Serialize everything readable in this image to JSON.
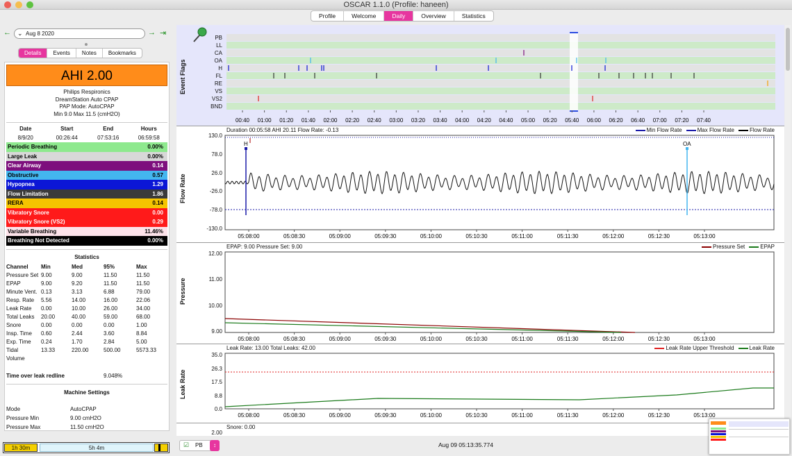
{
  "window": {
    "title": "OSCAR 1.1.0 (Profile: haneen)"
  },
  "top_tabs": [
    "Profile",
    "Welcome",
    "Daily",
    "Overview",
    "Statistics"
  ],
  "date_nav": {
    "date": "Aug 8 2020"
  },
  "sub_tabs": [
    "Details",
    "Events",
    "Notes",
    "Bookmarks"
  ],
  "ahi": "AHI 2.00",
  "machine": {
    "brand": "Philips Respironics",
    "model": "DreamStation Auto CPAP",
    "mode": "PAP Mode: AutoCPAP",
    "pressure": "Min 9.0 Max 11.5 (cmH2O)"
  },
  "session": {
    "headers": [
      "Date",
      "Start",
      "End",
      "Hours"
    ],
    "values": [
      "8/9/20",
      "00:26:44",
      "07:53:16",
      "06:59:58"
    ]
  },
  "events": [
    {
      "name": "Periodic Breathing",
      "value": "0.00%",
      "bg": "#8ee98e",
      "fg": "#000"
    },
    {
      "name": "Large Leak",
      "value": "0.00%",
      "bg": "#d8d8d8",
      "fg": "#000"
    },
    {
      "name": "Clear Airway",
      "value": "0.14",
      "bg": "#7d0f7d",
      "fg": "#fff"
    },
    {
      "name": "Obstructive",
      "value": "0.57",
      "bg": "#43b6ef",
      "fg": "#000"
    },
    {
      "name": "Hypopnea",
      "value": "1.29",
      "bg": "#0b16d6",
      "fg": "#fff"
    },
    {
      "name": "Flow Limitation",
      "value": "1.86",
      "bg": "#3a3a3a",
      "fg": "#fff"
    },
    {
      "name": "RERA",
      "value": "0.14",
      "bg": "#f5c400",
      "fg": "#000"
    },
    {
      "name": "Vibratory Snore",
      "value": "0.00",
      "bg": "#ff1a1a",
      "fg": "#fff"
    },
    {
      "name": "Vibratory Snore (VS2)",
      "value": "0.29",
      "bg": "#ff1a1a",
      "fg": "#fff"
    },
    {
      "name": "Variable Breathing",
      "value": "11.46%",
      "bg": "#fde3ea",
      "fg": "#000"
    },
    {
      "name": "Breathing Not Detected",
      "value": "0.00%",
      "bg": "#000000",
      "fg": "#fff"
    }
  ],
  "statistics": {
    "title": "Statistics",
    "headers": [
      "Channel",
      "Min",
      "Med",
      "95%",
      "Max"
    ],
    "rows": [
      [
        "Pressure Set",
        "9.00",
        "9.00",
        "11.50",
        "11.50"
      ],
      [
        "EPAP",
        "9.00",
        "9.20",
        "11.50",
        "11.50"
      ],
      [
        "Minute Vent.",
        "0.13",
        "3.13",
        "6.88",
        "79.00"
      ],
      [
        "Resp. Rate",
        "5.56",
        "14.00",
        "16.00",
        "22.06"
      ],
      [
        "Leak Rate",
        "0.00",
        "10.00",
        "26.00",
        "34.00"
      ],
      [
        "Total Leaks",
        "20.00",
        "40.00",
        "59.00",
        "68.00"
      ],
      [
        "Snore",
        "0.00",
        "0.00",
        "0.00",
        "1.00"
      ],
      [
        "Insp. Time",
        "0.60",
        "2.44",
        "3.60",
        "8.84"
      ],
      [
        "Exp. Time",
        "0.24",
        "1.70",
        "2.84",
        "5.00"
      ],
      [
        "Tidal",
        "13.33",
        "220.00",
        "500.00",
        "5573.33"
      ]
    ],
    "tidal_suffix": "Volume"
  },
  "leak_redline": {
    "label": "Time over leak redline",
    "value": "9.048%"
  },
  "machine_settings": {
    "title": "Machine Settings",
    "rows": [
      [
        "Mode",
        "AutoCPAP"
      ],
      [
        "Pressure Min",
        "9.00 cmH2O"
      ],
      [
        "Pressure Max",
        "11.50 cmH2O"
      ]
    ]
  },
  "bottom_bar": {
    "left": "1h 30m",
    "middle": "5h 4m"
  },
  "event_flags": {
    "ylabel": "Event Flags",
    "channels": [
      "PB",
      "LL",
      "CA",
      "OA",
      "H",
      "FL",
      "RE",
      "VS",
      "VS2",
      "BND"
    ],
    "x_ticks": [
      "00:40",
      "01:00",
      "01:20",
      "01:40",
      "02:00",
      "02:20",
      "02:40",
      "03:00",
      "03:20",
      "03:40",
      "04:00",
      "04:20",
      "04:40",
      "05:00",
      "05:20",
      "05:40",
      "06:00",
      "06:20",
      "06:40",
      "07:00",
      "07:20",
      "07:40"
    ]
  },
  "flow_rate": {
    "ylabel": "Flow Rate",
    "title": "Duration 00:05:58 AHI 20.11 Flow Rate: -0.13",
    "legend": [
      {
        "name": "Min Flow Rate",
        "color": "#1a1aa8"
      },
      {
        "name": "Max Flow Rate",
        "color": "#1a1aa8"
      },
      {
        "name": "Flow Rate",
        "color": "#000000"
      }
    ],
    "y_ticks": [
      "130.0",
      "78.0",
      "26.0",
      "-26.0",
      "-78.0",
      "-130.0"
    ],
    "annotations": [
      "H",
      "OA"
    ]
  },
  "pressure": {
    "ylabel": "Pressure",
    "title": "EPAP: 9.00 Pressure Set: 9.00",
    "legend": [
      {
        "name": "Pressure Set",
        "color": "#8b0000"
      },
      {
        "name": "EPAP",
        "color": "#1a7a1a"
      }
    ],
    "y_ticks": [
      "12.00",
      "11.00",
      "10.00",
      "9.00"
    ]
  },
  "leak": {
    "ylabel": "Leak Rate",
    "title": "Leak Rate: 13.00 Total Leaks: 42.00",
    "legend": [
      {
        "name": "Leak Rate Upper Threshold",
        "color": "#e02020"
      },
      {
        "name": "Leak Rate",
        "color": "#1a7a1a"
      }
    ],
    "y_ticks": [
      "35.0",
      "26.3",
      "17.5",
      "8.8",
      "0.0"
    ]
  },
  "snore": {
    "title": "Snore: 0.00",
    "y_top": "2.00"
  },
  "x_ticks": [
    "05:08:00",
    "05:08:30",
    "05:09:00",
    "05:09:30",
    "05:10:00",
    "05:10:30",
    "05:11:00",
    "05:11:30",
    "05:12:00",
    "05:12:30",
    "05:13:00"
  ],
  "status": {
    "checkbox_label": "PB",
    "timestamp": "Aug 09 05:13:35.774"
  }
}
